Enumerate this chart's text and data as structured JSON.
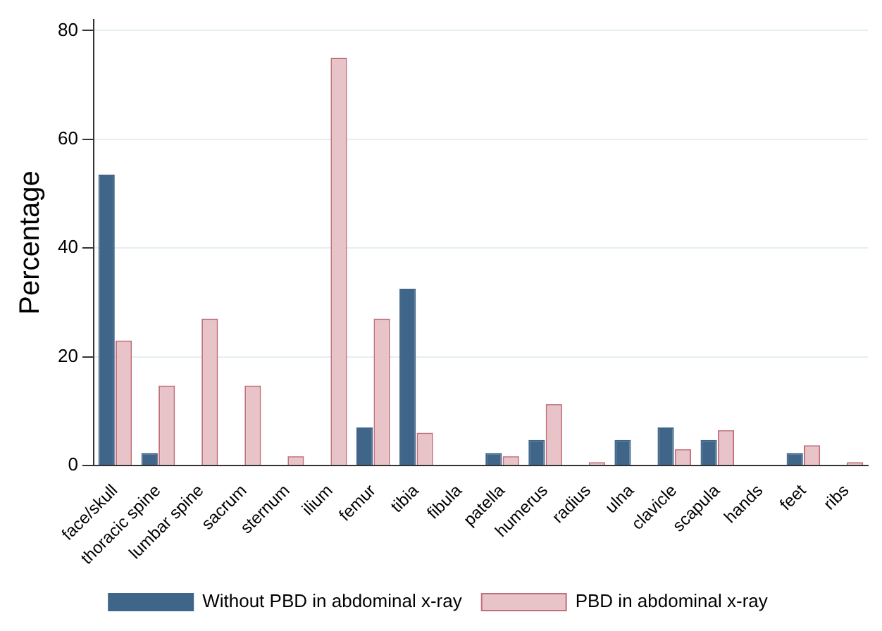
{
  "chart_data": {
    "type": "bar",
    "ylabel": "Percentage",
    "categories": [
      "face/skull",
      "thoracic spine",
      "lumbar spine",
      "sacrum",
      "sternum",
      "ilium",
      "femur",
      "tibia",
      "fibula",
      "patella",
      "humerus",
      "radius",
      "ulna",
      "clavicle",
      "scapula",
      "hands",
      "feet",
      "ribs"
    ],
    "series": [
      {
        "name": "Without PBD in abdominal x-ray",
        "color": "#3f6589",
        "values": [
          53.5,
          2.3,
          0,
          0,
          0,
          0,
          7,
          32.5,
          0,
          2.3,
          4.7,
          0,
          4.7,
          7,
          4.7,
          0,
          2.3,
          0
        ]
      },
      {
        "name": "PBD in abdominal x-ray",
        "color": "#e8c4c8",
        "values": [
          23,
          14.7,
          27,
          14.7,
          1.7,
          75,
          27,
          6,
          0,
          1.7,
          11.3,
          0.6,
          0,
          3,
          6.5,
          0,
          3.7,
          0.6
        ]
      }
    ],
    "ylim": [
      0,
      82
    ],
    "yticks": [
      0,
      20,
      40,
      60,
      80
    ],
    "grid": "y",
    "legend": "bottom"
  }
}
